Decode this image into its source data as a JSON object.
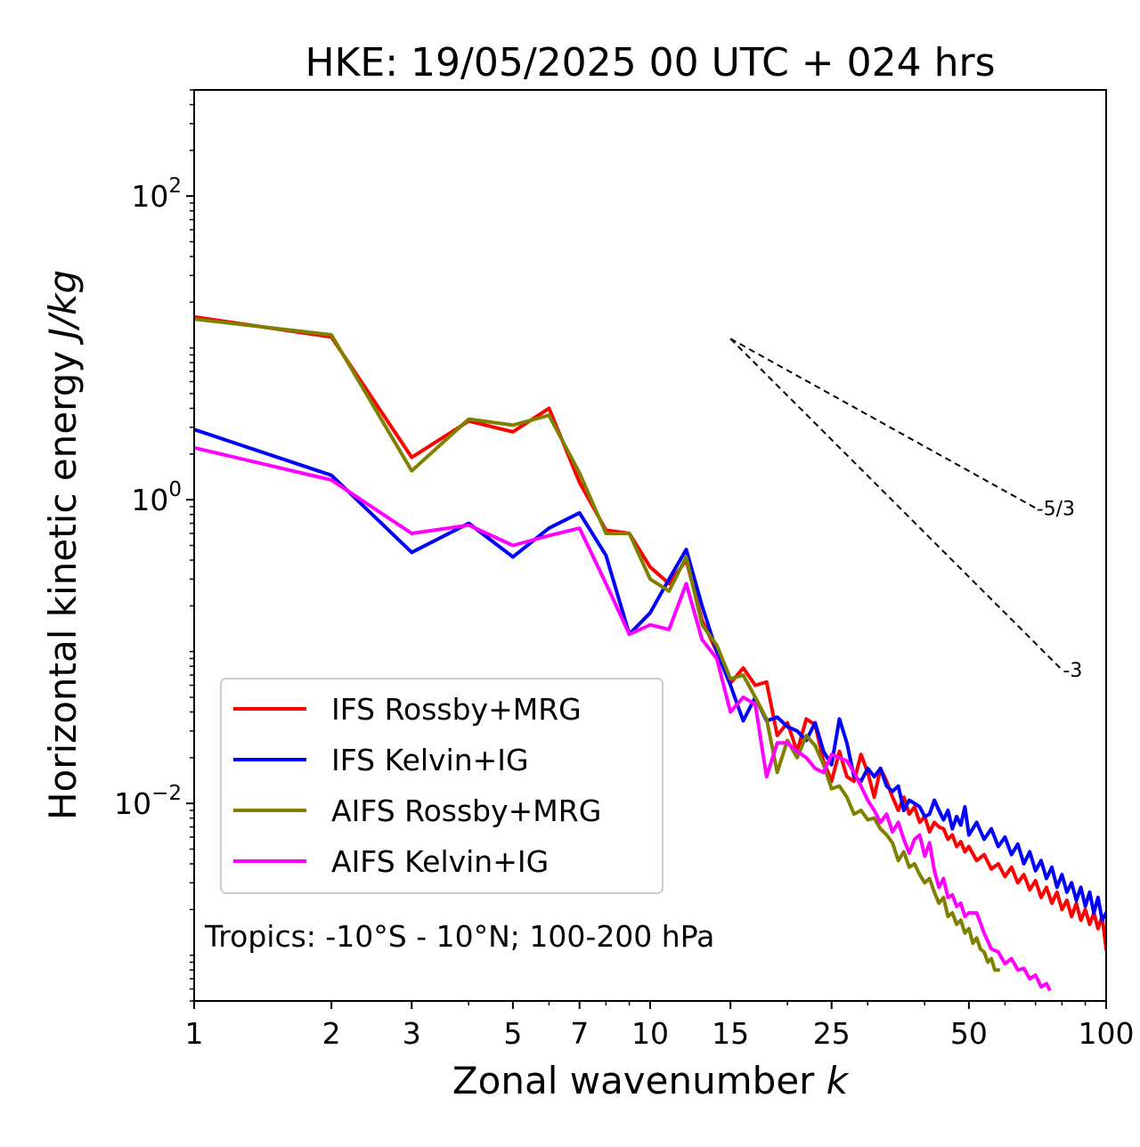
{
  "chart_data": {
    "type": "line",
    "title": "HKE: 19/05/2025 00 UTC + 024 hrs",
    "xlabel_prefix": "Zonal wavenumber ",
    "xlabel_var": "k",
    "ylabel_prefix": "Horizontal kinetic energy ",
    "ylabel_unit": "J/kg",
    "x_scale": "log",
    "y_scale": "log",
    "xlim": [
      1,
      100
    ],
    "ylim": [
      0.0005,
      500
    ],
    "x_ticks": [
      {
        "value": 1,
        "label": "1"
      },
      {
        "value": 2,
        "label": "2"
      },
      {
        "value": 3,
        "label": "3"
      },
      {
        "value": 5,
        "label": "5"
      },
      {
        "value": 7,
        "label": "7"
      },
      {
        "value": 10,
        "label": "10"
      },
      {
        "value": 15,
        "label": "15"
      },
      {
        "value": 25,
        "label": "25"
      },
      {
        "value": 50,
        "label": "50"
      },
      {
        "value": 100,
        "label": "100"
      }
    ],
    "y_ticks": [
      {
        "value": 0.01,
        "base": "10",
        "exp": "−2"
      },
      {
        "value": 1,
        "base": "10",
        "exp": "0"
      },
      {
        "value": 100,
        "base": "10",
        "exp": "2"
      }
    ],
    "grid": false,
    "legend_position": "lower-left",
    "annotation": "Tropics: -10°S - 10°N; 100-200 hPa",
    "reference_lines": [
      {
        "label": "-5/3",
        "slope": -1.6667,
        "x_start": 15,
        "y_start": 11.5,
        "x_end": 70
      },
      {
        "label": "-3",
        "slope": -3,
        "x_start": 15,
        "y_start": 11.5,
        "x_end": 80
      }
    ],
    "series": [
      {
        "name": "IFS Rossby+MRG",
        "color": "#ff0000",
        "x": [
          1,
          2,
          3,
          4,
          5,
          6,
          7,
          8,
          9,
          10,
          11,
          12,
          13,
          14,
          15,
          16,
          17,
          18,
          19,
          20,
          21,
          22,
          23,
          24,
          25,
          26,
          27,
          28,
          29,
          30,
          31,
          32,
          33,
          34,
          35,
          36,
          37,
          38,
          39,
          40,
          41,
          42,
          43,
          44,
          45,
          46,
          47,
          48,
          49,
          50,
          52,
          54,
          56,
          58,
          60,
          62,
          64,
          66,
          68,
          70,
          72,
          74,
          76,
          78,
          80,
          82,
          84,
          86,
          88,
          90,
          92,
          94,
          96,
          98,
          100
        ],
        "y": [
          16,
          11.8,
          1.9,
          3.3,
          2.8,
          4,
          1.3,
          0.63,
          0.6,
          0.36,
          0.28,
          0.4,
          0.16,
          0.1,
          0.062,
          0.078,
          0.06,
          0.063,
          0.028,
          0.034,
          0.022,
          0.036,
          0.033,
          0.019,
          0.014,
          0.022,
          0.015,
          0.014,
          0.021,
          0.016,
          0.011,
          0.017,
          0.014,
          0.011,
          0.009,
          0.011,
          0.0085,
          0.0095,
          0.0075,
          0.0082,
          0.0065,
          0.0075,
          0.007,
          0.0068,
          0.0058,
          0.0062,
          0.0052,
          0.0056,
          0.0048,
          0.0052,
          0.0042,
          0.0046,
          0.0037,
          0.004,
          0.0033,
          0.0038,
          0.003,
          0.0034,
          0.0027,
          0.0031,
          0.0024,
          0.0028,
          0.0022,
          0.0026,
          0.002,
          0.0023,
          0.0018,
          0.0022,
          0.0017,
          0.002,
          0.0016,
          0.0019,
          0.0015,
          0.0018,
          0.0011
        ]
      },
      {
        "name": "IFS Kelvin+IG",
        "color": "#0000ff",
        "x": [
          1,
          2,
          3,
          4,
          5,
          6,
          7,
          8,
          9,
          10,
          11,
          12,
          13,
          14,
          15,
          16,
          17,
          18,
          19,
          20,
          21,
          22,
          23,
          24,
          25,
          26,
          27,
          28,
          29,
          30,
          31,
          32,
          33,
          34,
          35,
          36,
          37,
          38,
          39,
          40,
          41,
          42,
          43,
          44,
          45,
          46,
          47,
          48,
          49,
          50,
          52,
          54,
          56,
          58,
          60,
          62,
          64,
          66,
          68,
          70,
          72,
          74,
          76,
          78,
          80,
          82,
          84,
          86,
          88,
          90,
          92,
          94,
          96,
          98,
          100
        ],
        "y": [
          2.9,
          1.45,
          0.45,
          0.7,
          0.42,
          0.65,
          0.82,
          0.43,
          0.13,
          0.18,
          0.3,
          0.47,
          0.2,
          0.1,
          0.06,
          0.035,
          0.05,
          0.035,
          0.037,
          0.032,
          0.03,
          0.026,
          0.034,
          0.022,
          0.018,
          0.036,
          0.025,
          0.015,
          0.014,
          0.017,
          0.015,
          0.017,
          0.013,
          0.012,
          0.013,
          0.009,
          0.0105,
          0.01,
          0.0095,
          0.0082,
          0.0085,
          0.0105,
          0.009,
          0.0078,
          0.009,
          0.0068,
          0.0082,
          0.0072,
          0.0095,
          0.0062,
          0.0075,
          0.0058,
          0.0068,
          0.0052,
          0.006,
          0.0046,
          0.0054,
          0.004,
          0.0048,
          0.0036,
          0.0042,
          0.0032,
          0.0038,
          0.0028,
          0.0034,
          0.0026,
          0.003,
          0.0023,
          0.0028,
          0.0021,
          0.0026,
          0.0019,
          0.0024,
          0.0017,
          0.0019
        ]
      },
      {
        "name": "AIFS Rossby+MRG",
        "color": "#808000",
        "x": [
          1,
          2,
          3,
          4,
          5,
          6,
          7,
          8,
          9,
          10,
          11,
          12,
          13,
          14,
          15,
          16,
          17,
          18,
          19,
          20,
          21,
          22,
          23,
          24,
          25,
          26,
          27,
          28,
          29,
          30,
          31,
          32,
          33,
          34,
          35,
          36,
          37,
          38,
          39,
          40,
          41,
          42,
          43,
          44,
          45,
          46,
          47,
          48,
          49,
          50,
          51,
          52,
          53,
          54,
          55,
          56,
          57,
          58
        ],
        "y": [
          15.5,
          12.2,
          1.55,
          3.4,
          3.1,
          3.6,
          1.5,
          0.6,
          0.6,
          0.3,
          0.25,
          0.42,
          0.15,
          0.11,
          0.066,
          0.07,
          0.05,
          0.036,
          0.016,
          0.026,
          0.02,
          0.028,
          0.024,
          0.018,
          0.0125,
          0.013,
          0.011,
          0.0085,
          0.009,
          0.0078,
          0.008,
          0.0068,
          0.0062,
          0.0055,
          0.0042,
          0.0048,
          0.0038,
          0.004,
          0.0034,
          0.003,
          0.0032,
          0.0026,
          0.0022,
          0.0024,
          0.0018,
          0.0019,
          0.0016,
          0.0017,
          0.0014,
          0.0015,
          0.0012,
          0.0013,
          0.0011,
          0.00105,
          0.0009,
          0.00095,
          0.0008,
          0.0008
        ]
      },
      {
        "name": "AIFS Kelvin+IG",
        "color": "#ff00ff",
        "x": [
          1,
          2,
          3,
          4,
          5,
          6,
          7,
          8,
          9,
          10,
          11,
          12,
          13,
          14,
          15,
          16,
          17,
          18,
          19,
          20,
          21,
          22,
          23,
          24,
          25,
          26,
          27,
          28,
          29,
          30,
          31,
          32,
          33,
          34,
          35,
          36,
          37,
          38,
          39,
          40,
          41,
          42,
          43,
          44,
          45,
          46,
          47,
          48,
          49,
          50,
          52,
          54,
          56,
          58,
          60,
          62,
          64,
          66,
          68,
          70,
          72,
          74,
          75
        ],
        "y": [
          2.2,
          1.35,
          0.6,
          0.68,
          0.5,
          0.58,
          0.65,
          0.28,
          0.13,
          0.15,
          0.14,
          0.28,
          0.12,
          0.09,
          0.04,
          0.05,
          0.045,
          0.015,
          0.025,
          0.025,
          0.022,
          0.02,
          0.017,
          0.016,
          0.021,
          0.02,
          0.019,
          0.016,
          0.013,
          0.0105,
          0.009,
          0.0075,
          0.0085,
          0.0065,
          0.0075,
          0.0058,
          0.0047,
          0.0058,
          0.0062,
          0.0045,
          0.0055,
          0.0036,
          0.0028,
          0.0032,
          0.0024,
          0.0025,
          0.0021,
          0.0022,
          0.0018,
          0.0019,
          0.0019,
          0.0014,
          0.0011,
          0.00105,
          0.00088,
          0.00095,
          0.0008,
          0.00082,
          0.0007,
          0.00074,
          0.00062,
          0.00065,
          0.0006
        ]
      }
    ]
  }
}
